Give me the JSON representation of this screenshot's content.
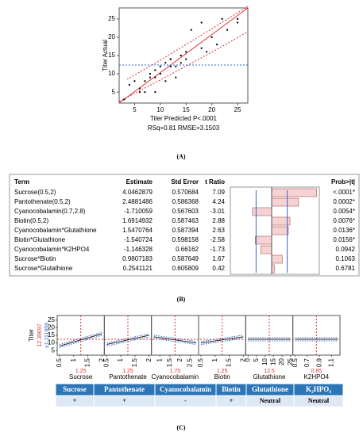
{
  "chart_data": [
    {
      "type": "scatter",
      "panel_label": "(A)",
      "ylabel": "Titer Actual",
      "xlabel": "Titer Predicted P<.0001",
      "subtitle": "RSq=0.81 RMSE=3.1503",
      "x": [
        3,
        4,
        5,
        6,
        6,
        7,
        7,
        8,
        8,
        9,
        9,
        9,
        10,
        10,
        11,
        11,
        12,
        12,
        12,
        13,
        13,
        14,
        14,
        15,
        15,
        16,
        18,
        18,
        19,
        20,
        21,
        22,
        23,
        25,
        25
      ],
      "y": [
        3,
        7,
        8,
        6,
        5,
        5,
        8,
        9,
        10,
        9,
        11,
        5,
        10,
        12,
        8,
        13,
        14,
        14,
        12,
        12,
        9,
        13,
        15,
        14,
        16,
        22,
        17,
        24,
        16,
        20,
        18,
        25,
        22,
        24,
        25
      ],
      "xlim": [
        2,
        27
      ],
      "ylim": [
        2,
        28
      ],
      "xticks": [
        5,
        10,
        15,
        20,
        25
      ],
      "yticks": [
        5,
        10,
        15,
        20,
        25
      ],
      "mean": 12.4
    },
    {
      "type": "profiler",
      "panel_label": "(C)",
      "ylabel": "Titer",
      "prediction": "12.39697",
      "interval": "±1.111959",
      "ylim": [
        2,
        28
      ],
      "yticks": [
        5,
        10,
        15,
        20,
        25
      ],
      "factors": [
        {
          "name": "Sucrose",
          "current": 1.25,
          "xlim": [
            0.5,
            2
          ],
          "xticks": [
            0.5,
            1,
            1.5,
            2
          ],
          "line": [
            8,
            16
          ]
        },
        {
          "name": "Pantothenate",
          "current": 1.25,
          "xlim": [
            0.5,
            2
          ],
          "xticks": [
            0.5,
            1,
            1.5,
            2
          ],
          "line": [
            9,
            15
          ]
        },
        {
          "name": "Cyanocobalamin",
          "current": 1.75,
          "xlim": [
            0.7,
            2.8
          ],
          "xticks": [
            1,
            1.5,
            2,
            2.5
          ],
          "line": [
            14,
            10
          ]
        },
        {
          "name": "Biotin",
          "current": 1.25,
          "xlim": [
            0.5,
            2
          ],
          "xticks": [
            0.5,
            1,
            1.5,
            2
          ],
          "line": [
            10,
            14
          ]
        },
        {
          "name": "Glutathione",
          "current": 12.5,
          "xlim": [
            0,
            25
          ],
          "xticks": [
            0,
            5,
            10,
            15,
            20,
            25
          ],
          "line": [
            12.4,
            12.4
          ]
        },
        {
          "name": "K2HPO4",
          "current": 0.85,
          "xlim": [
            0.5,
            1.2
          ],
          "xticks": [
            0.5,
            0.7,
            0.9,
            1.1
          ],
          "line": [
            12.4,
            12.4
          ]
        }
      ]
    }
  ],
  "table": {
    "panel_label": "(B)",
    "columns": [
      "Term",
      "Estimate",
      "Std Error",
      "t Ratio",
      "Prob>|t|"
    ],
    "t_ratio_xlim": [
      -6.5,
      7.5
    ],
    "threshold": 2.45,
    "rows": [
      [
        "Sucrose(0.5,2)",
        4.0462879,
        0.570684,
        7.09,
        "<.0001*"
      ],
      [
        "Pantothenate(0.5,2)",
        2.4881486,
        0.586368,
        4.24,
        "0.0002*"
      ],
      [
        "Cyanocobalamin(0.7,2.8)",
        -1.710059,
        0.567603,
        -3.01,
        "0.0054*"
      ],
      [
        "Biotin(0.5,2)",
        1.6914932,
        0.587463,
        2.88,
        "0.0076*"
      ],
      [
        "Cyanocobalamin*Glutathione",
        1.5470764,
        0.587394,
        2.63,
        "0.0136*"
      ],
      [
        "Biotin*Glutathione",
        -1.540724,
        0.598158,
        -2.58,
        "0.0156*"
      ],
      [
        "Cyanocobalamin*K2HPO4",
        -1.146328,
        0.66162,
        -1.73,
        "0.0942"
      ],
      [
        "Sucrose*Biotin",
        0.9807183,
        0.587649,
        1.67,
        "0.1063"
      ],
      [
        "Sucrose*Glutathione",
        0.2541121,
        0.605809,
        0.42,
        "0.6781"
      ]
    ]
  },
  "effects": {
    "headers": [
      "Sucrose",
      "Pantothenate",
      "Cyanocobalamin",
      "Biotin",
      "Glutathione",
      "K₂HPO₄"
    ],
    "signs": [
      "+",
      "+",
      "-",
      "+",
      "Neutral",
      "Neutral"
    ]
  }
}
